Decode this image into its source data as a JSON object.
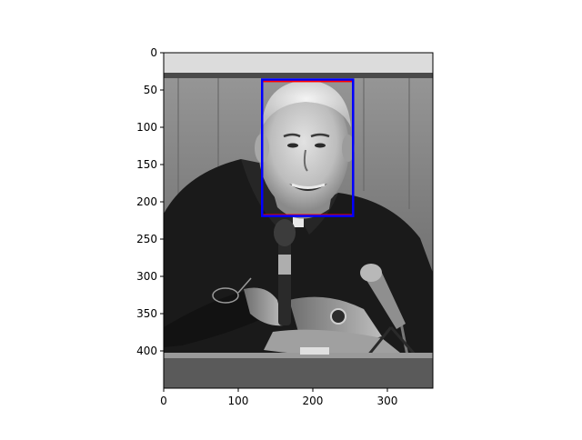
{
  "chart_data": {
    "type": "image",
    "image_colormap": "gray",
    "image_subject": "Elderly man in dark suit smiling, seated at a podium with several microphones",
    "x_ticks": [
      0,
      100,
      200,
      300
    ],
    "y_ticks": [
      0,
      50,
      100,
      150,
      200,
      250,
      300,
      350,
      400
    ],
    "xlim": [
      0,
      361
    ],
    "ylim": [
      450,
      0
    ],
    "grid": false,
    "annotations": [
      {
        "type": "rectangle",
        "color": "#ff0000",
        "x0": 132,
        "y0": 38,
        "x1": 254,
        "y1": 218
      },
      {
        "type": "rectangle",
        "color": "#0000ff",
        "x0": 132,
        "y0": 36,
        "x1": 254,
        "y1": 219
      }
    ]
  }
}
